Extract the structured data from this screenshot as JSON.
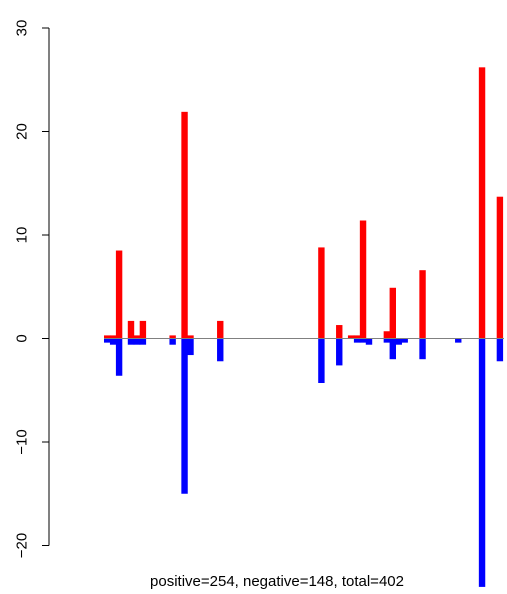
{
  "chart_data": {
    "type": "bar",
    "title": "",
    "xlabel": "",
    "ylabel": "",
    "ylim": [
      -24,
      30
    ],
    "yticks": [
      -20,
      -10,
      0,
      10,
      20,
      30
    ],
    "ytick_labels": [
      "−20",
      "−10",
      "0",
      "10",
      "20",
      "30"
    ],
    "grid": false,
    "legend": "none",
    "caption": "positive=254, negative=148, total=402",
    "colors": {
      "positive": "#ff0000",
      "negative": "#0000ff",
      "baseline": "#808080"
    },
    "positive_bars": [
      {
        "x": 0,
        "value": 0.3
      },
      {
        "x": 1,
        "value": 0.3
      },
      {
        "x": 2,
        "value": 8.5
      },
      {
        "x": 4,
        "value": 1.7
      },
      {
        "x": 5,
        "value": 0.3
      },
      {
        "x": 6,
        "value": 1.7
      },
      {
        "x": 11,
        "value": 0.3
      },
      {
        "x": 13,
        "value": 21.9
      },
      {
        "x": 14,
        "value": 0.3
      },
      {
        "x": 19,
        "value": 1.7
      },
      {
        "x": 36,
        "value": 8.8
      },
      {
        "x": 39,
        "value": 1.3
      },
      {
        "x": 41,
        "value": 0.3
      },
      {
        "x": 42,
        "value": 0.3
      },
      {
        "x": 43,
        "value": 11.4
      },
      {
        "x": 47,
        "value": 0.7
      },
      {
        "x": 48,
        "value": 4.9
      },
      {
        "x": 53,
        "value": 6.6
      },
      {
        "x": 63,
        "value": 26.2
      },
      {
        "x": 66,
        "value": 13.7
      }
    ],
    "negative_bars": [
      {
        "x": 0,
        "value": -0.4
      },
      {
        "x": 1,
        "value": -0.6
      },
      {
        "x": 2,
        "value": -3.6
      },
      {
        "x": 4,
        "value": -0.6
      },
      {
        "x": 5,
        "value": -0.6
      },
      {
        "x": 6,
        "value": -0.6
      },
      {
        "x": 11,
        "value": -0.6
      },
      {
        "x": 13,
        "value": -15.0
      },
      {
        "x": 14,
        "value": -1.6
      },
      {
        "x": 19,
        "value": -2.2
      },
      {
        "x": 36,
        "value": -4.3
      },
      {
        "x": 39,
        "value": -2.6
      },
      {
        "x": 42,
        "value": -0.4
      },
      {
        "x": 43,
        "value": -0.4
      },
      {
        "x": 44,
        "value": -0.6
      },
      {
        "x": 47,
        "value": -0.4
      },
      {
        "x": 48,
        "value": -2.0
      },
      {
        "x": 49,
        "value": -0.6
      },
      {
        "x": 50,
        "value": -0.4
      },
      {
        "x": 53,
        "value": -2.0
      },
      {
        "x": 59,
        "value": -0.4
      },
      {
        "x": 63,
        "value": -24.0
      },
      {
        "x": 66,
        "value": -2.2
      }
    ]
  }
}
